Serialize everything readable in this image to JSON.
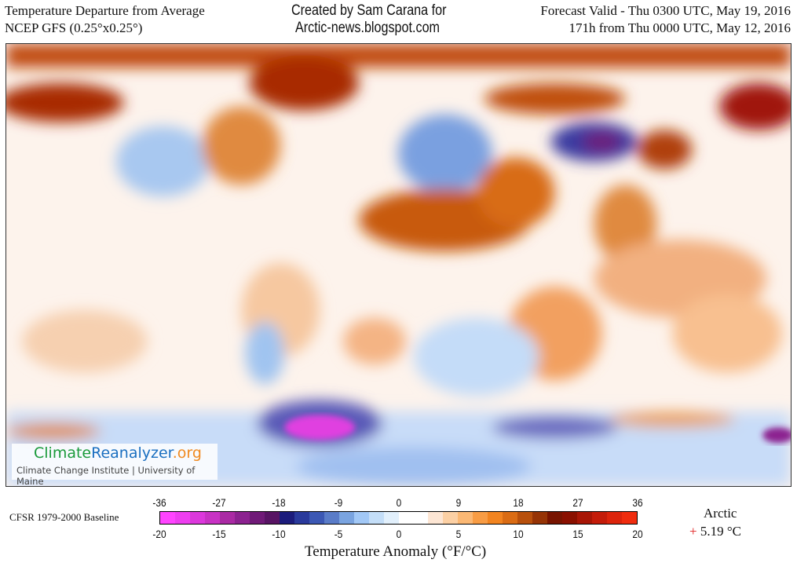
{
  "header": {
    "title_line1": "Temperature Departure from Average",
    "title_line2": "NCEP GFS (0.25°x0.25°)",
    "credit_line1": "Created by Sam Carana for",
    "credit_line2": "Arctic-news.blogspot.com",
    "forecast_line1": "Forecast Valid - Thu 0300 UTC, May 19, 2016",
    "forecast_line2": "171h from Thu 0000 UTC, May 12, 2016"
  },
  "logo": {
    "part1": "Climate",
    "part2": "Reanalyzer",
    "part3": ".org",
    "subtitle": "Climate Change Institute | University of Maine",
    "colors": {
      "part1": "#1a9a3a",
      "part2": "#1a6fc0",
      "part3": "#f08a20"
    }
  },
  "legend": {
    "baseline": "CFSR 1979-2000 Baseline",
    "title": "Temperature Anomaly (°F/°C)",
    "f_ticks": [
      "-36",
      "-27",
      "-18",
      "-9",
      "0",
      "9",
      "18",
      "27",
      "36"
    ],
    "c_ticks": [
      "-20",
      "-15",
      "-10",
      "-5",
      "0",
      "5",
      "10",
      "15",
      "20"
    ],
    "colors": [
      "#ff44ff",
      "#ee3ef0",
      "#dc38dc",
      "#c832c4",
      "#aa2aa4",
      "#8c2290",
      "#701a78",
      "#581464",
      "#1c1c7c",
      "#2a3a9c",
      "#3c58b4",
      "#5a7cc8",
      "#7aa4e0",
      "#a2c8f6",
      "#c4def8",
      "#e2f0fc",
      "#ffffff",
      "#ffffff",
      "#fde6d4",
      "#fcd0a4",
      "#fbb874",
      "#f89c44",
      "#f28420",
      "#da6c14",
      "#b8500c",
      "#963406",
      "#781400",
      "#8a1000",
      "#a81606",
      "#c41c0a",
      "#dc240c",
      "#f02c0e"
    ]
  },
  "region": {
    "name": "Arctic",
    "sign": "+",
    "value": "5.19 °C"
  }
}
